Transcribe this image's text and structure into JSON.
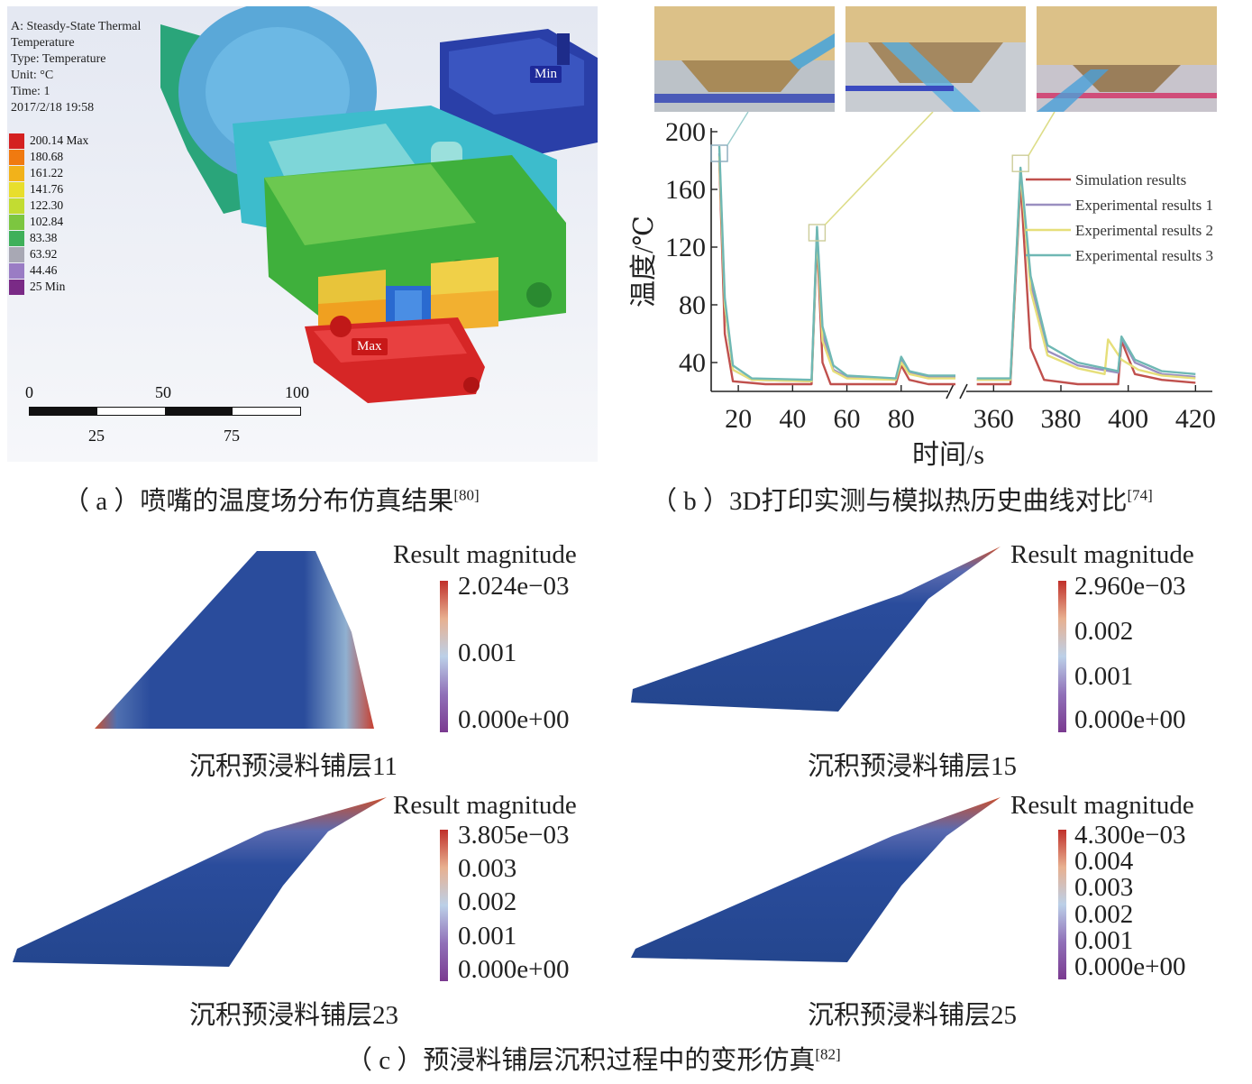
{
  "panel_a": {
    "header_lines": [
      "A: Steasdy-State Thermal",
      "Temperature",
      "Type: Temperature",
      "Unit: °C",
      "Time: 1",
      "2017/2/18 19:58"
    ],
    "legend": [
      {
        "label": "200.14 Max",
        "color": "#d42020"
      },
      {
        "label": "180.68",
        "color": "#f07a10"
      },
      {
        "label": "161.22",
        "color": "#f2b21a"
      },
      {
        "label": "141.76",
        "color": "#e8de2c"
      },
      {
        "label": "122.30",
        "color": "#c2dc32"
      },
      {
        "label": "102.84",
        "color": "#7cc640"
      },
      {
        "label": "83.38",
        "color": "#3fb05a"
      },
      {
        "label": "63.92",
        "color": "#a8a8b4"
      },
      {
        "label": "44.46",
        "color": "#9a7cc4"
      },
      {
        "label": "25 Min",
        "color": "#7a2a86"
      }
    ],
    "min_label": "Min",
    "max_label": "Max",
    "scale_top": [
      "0",
      "50",
      "100"
    ],
    "scale_bottom": [
      "25",
      "75"
    ],
    "caption_prefix": "（ a ）喷嘴的温度场分布仿真结果",
    "caption_ref": "[80]"
  },
  "panel_b": {
    "caption_prefix": "（ b ）3D打印实测与模拟热历史曲线对比",
    "caption_ref": "[74]",
    "chart_data": {
      "type": "line",
      "xlabel": "时间/s",
      "ylabel": "温度/℃",
      "x_ticks": [
        "20",
        "40",
        "60",
        "80",
        "360",
        "380",
        "400",
        "420"
      ],
      "y_ticks": [
        "40",
        "80",
        "120",
        "160",
        "200"
      ],
      "ylim": [
        20,
        200
      ],
      "x_segments": [
        [
          10,
          100
        ],
        [
          350,
          425
        ]
      ],
      "axis_break": true,
      "legend_position": "top-right",
      "series": [
        {
          "name": "Simulation results",
          "color": "#c0504d",
          "points": [
            [
              13,
              180
            ],
            [
              15,
              60
            ],
            [
              18,
              27
            ],
            [
              30,
              25
            ],
            [
              47,
              25
            ],
            [
              49,
              125
            ],
            [
              51,
              40
            ],
            [
              54,
              25
            ],
            [
              78,
              25
            ],
            [
              80,
              38
            ],
            [
              83,
              28
            ],
            [
              90,
              25
            ],
            [
              100,
              25
            ],
            [
              355,
              25
            ],
            [
              365,
              25
            ],
            [
              368,
              165
            ],
            [
              371,
              50
            ],
            [
              375,
              28
            ],
            [
              385,
              25
            ],
            [
              397,
              25
            ],
            [
              398,
              55
            ],
            [
              402,
              32
            ],
            [
              410,
              28
            ],
            [
              420,
              26
            ]
          ]
        },
        {
          "name": "Experimental results 1",
          "color": "#9a8fc0",
          "points": [
            [
              13,
              185
            ],
            [
              15,
              80
            ],
            [
              18,
              35
            ],
            [
              25,
              28
            ],
            [
              47,
              27
            ],
            [
              49,
              132
            ],
            [
              51,
              60
            ],
            [
              55,
              35
            ],
            [
              60,
              30
            ],
            [
              78,
              28
            ],
            [
              80,
              42
            ],
            [
              83,
              33
            ],
            [
              90,
              30
            ],
            [
              100,
              30
            ],
            [
              355,
              28
            ],
            [
              365,
              28
            ],
            [
              368,
              173
            ],
            [
              371,
              95
            ],
            [
              376,
              48
            ],
            [
              385,
              38
            ],
            [
              397,
              33
            ],
            [
              398,
              57
            ],
            [
              402,
              40
            ],
            [
              410,
              32
            ],
            [
              420,
              30
            ]
          ]
        },
        {
          "name": "Experimental results 2",
          "color": "#e6df7a",
          "points": [
            [
              13,
              183
            ],
            [
              15,
              80
            ],
            [
              18,
              35
            ],
            [
              25,
              28
            ],
            [
              47,
              27
            ],
            [
              49,
              130
            ],
            [
              51,
              55
            ],
            [
              55,
              34
            ],
            [
              60,
              29
            ],
            [
              78,
              28
            ],
            [
              80,
              40
            ],
            [
              83,
              32
            ],
            [
              90,
              29
            ],
            [
              100,
              29
            ],
            [
              355,
              28
            ],
            [
              365,
              28
            ],
            [
              368,
              172
            ],
            [
              371,
              90
            ],
            [
              376,
              45
            ],
            [
              385,
              36
            ],
            [
              393,
              32
            ],
            [
              394,
              56
            ],
            [
              398,
              42
            ],
            [
              403,
              35
            ],
            [
              410,
              31
            ],
            [
              420,
              29
            ]
          ]
        },
        {
          "name": "Experimental results 3",
          "color": "#6fb8b4",
          "points": [
            [
              13,
              190
            ],
            [
              15,
              85
            ],
            [
              18,
              38
            ],
            [
              25,
              29
            ],
            [
              47,
              28
            ],
            [
              49,
              134
            ],
            [
              51,
              65
            ],
            [
              55,
              38
            ],
            [
              60,
              31
            ],
            [
              78,
              29
            ],
            [
              80,
              44
            ],
            [
              83,
              34
            ],
            [
              90,
              31
            ],
            [
              100,
              31
            ],
            [
              355,
              29
            ],
            [
              365,
              29
            ],
            [
              368,
              175
            ],
            [
              371,
              100
            ],
            [
              376,
              52
            ],
            [
              385,
              40
            ],
            [
              397,
              34
            ],
            [
              398,
              58
            ],
            [
              402,
              42
            ],
            [
              410,
              34
            ],
            [
              420,
              32
            ]
          ]
        }
      ]
    }
  },
  "panel_c": {
    "caption_prefix": "（ c ）预浸料铺层沉积过程中的变形仿真",
    "caption_ref": "[82]",
    "plots": [
      {
        "label": "沉积预浸料铺层11",
        "title": "Result magnitude",
        "ticks": [
          "2.024e−03",
          "0.001",
          "0.000e+00"
        ]
      },
      {
        "label": "沉积预浸料铺层15",
        "title": "Result magnitude",
        "ticks": [
          "2.960e−03",
          "0.002",
          "0.001",
          "0.000e+00"
        ]
      },
      {
        "label": "沉积预浸料铺层23",
        "title": "Result magnitude",
        "ticks": [
          "3.805e−03",
          "0.003",
          "0.002",
          "0.001",
          "0.000e+00"
        ]
      },
      {
        "label": "沉积预浸料铺层25",
        "title": "Result magnitude",
        "ticks": [
          "4.300e−03",
          "0.004",
          "0.003",
          "0.002",
          "0.001",
          "0.000e+00"
        ]
      }
    ]
  }
}
